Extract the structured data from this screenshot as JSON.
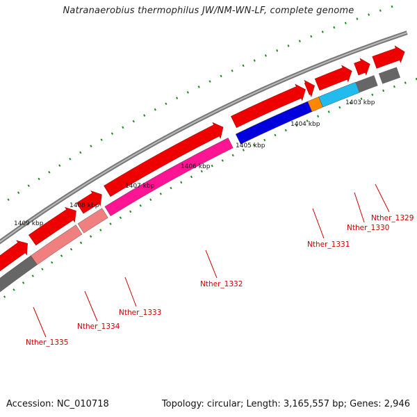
{
  "title": "Natranaerobius thermophilus JW/NM-WN-LF, complete genome",
  "footer": {
    "accession": "Accession: NC_010718",
    "summary": "Topology: circular; Length: 3,165,557 bp; Genes: 2,946"
  },
  "colors": {
    "backbone": "#888888",
    "cds_strand": "#ee0000",
    "tick": "#1a8a1a",
    "label": "#cc0000",
    "gene_1329": "#22bbee",
    "gene_1330": "#ff8800",
    "gene_1331": "#0000dd",
    "gene_1332": "#ff1493",
    "gene_1333": "#f08080",
    "gene_1334": "#f08080",
    "gene_1335": "#666666"
  },
  "scale": {
    "unit": "kbp",
    "labels": [
      "1403 kbp",
      "1404 kbp",
      "1405 kbp",
      "1406 kbp",
      "1407 kbp",
      "1408 kbp",
      "1409 kbp"
    ]
  },
  "genes": [
    {
      "label": "Nther_1329",
      "color_key": "gene_1329"
    },
    {
      "label": "Nther_1330",
      "color_key": "gene_1330"
    },
    {
      "label": "Nther_1331",
      "color_key": "gene_1331"
    },
    {
      "label": "Nther_1332",
      "color_key": "gene_1332"
    },
    {
      "label": "Nther_1333",
      "color_key": "gene_1333"
    },
    {
      "label": "Nther_1334",
      "color_key": "gene_1334"
    },
    {
      "label": "Nther_1335",
      "color_key": "gene_1335"
    }
  ]
}
